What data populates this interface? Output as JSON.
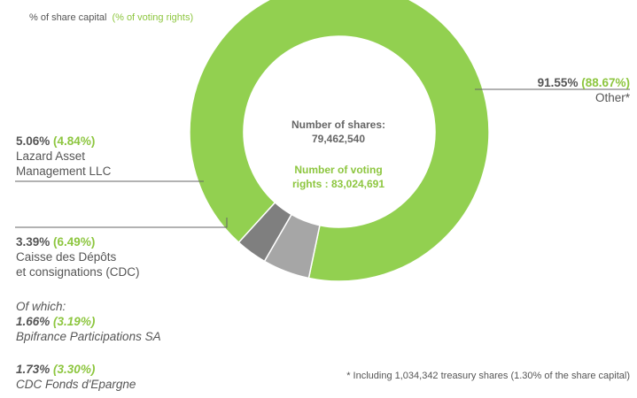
{
  "legend": {
    "capital": "% of share capital",
    "voting": "(% of voting rights)"
  },
  "center": {
    "shares_label": "Number of shares:",
    "shares_value": "79,462,540",
    "voting_line1": "Number  of voting",
    "voting_line2": "rights : 83,024,691"
  },
  "labels": {
    "other": {
      "pct": "91.55%",
      "voting": "(88.67%)",
      "name": "Other*"
    },
    "lazard": {
      "pct": "5.06%",
      "voting": "(4.84%)",
      "name1": "Lazard Asset",
      "name2": "Management LLC"
    },
    "cdc": {
      "pct": "3.39%",
      "voting": "(6.49%)",
      "name1": "Caisse des Dépôts",
      "name2": "et consignations (CDC)"
    },
    "of_which": "Of which:",
    "bpi": {
      "pct": "1.66%",
      "voting": "(3.19%)",
      "name": "Bpifrance Participations SA"
    },
    "cdcfe": {
      "pct": "1.73%",
      "voting": "(3.30%)",
      "name": "CDC Fonds d'Epargne"
    }
  },
  "footnote": "* Including 1,034,342 treasury shares  (1.30% of the share capital)",
  "chart_data": {
    "type": "pie",
    "donut": true,
    "categories": [
      "Other*",
      "Lazard Asset Management LLC",
      "Caisse des Dépôts et consignations (CDC)"
    ],
    "values": [
      91.55,
      5.06,
      3.39
    ],
    "voting_rights": [
      88.67,
      4.84,
      6.49
    ],
    "colors": [
      "#92d050",
      "#a6a6a6",
      "#7f7f7f"
    ],
    "title": ""
  }
}
